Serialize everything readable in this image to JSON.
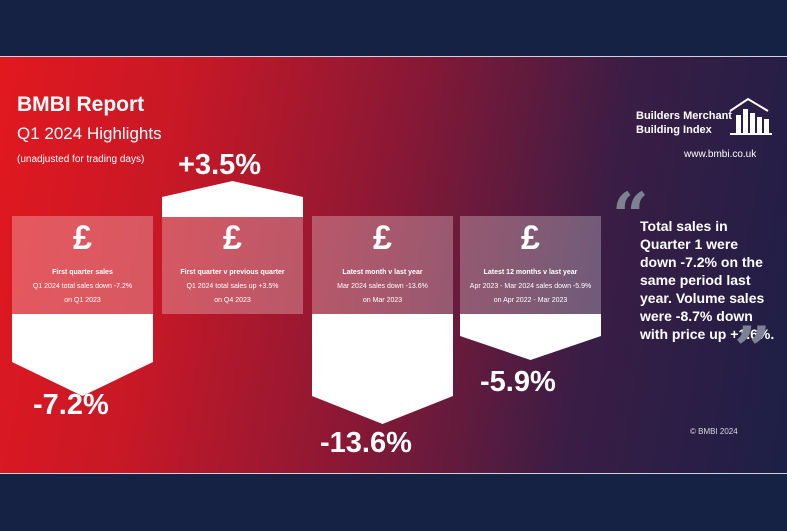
{
  "report": {
    "title": "BMBI Report",
    "subtitle": "Q1 2024 Highlights",
    "note": "(unadjusted for trading days)"
  },
  "logo": {
    "line1": "Builders Merchant",
    "line2": "Building Index",
    "url": "www.bmbi.co.uk",
    "icon": "building-skyline-icon"
  },
  "cards": [
    {
      "symbol": "£",
      "line1": "First quarter sales",
      "line2": "Q1 2024 total sales down -7.2%",
      "line3": "on Q1 2023",
      "value": "-7.2%"
    },
    {
      "symbol": "£",
      "line1": "First quarter v previous quarter",
      "line2": "Q1 2024 total sales up +3.5%",
      "line3": "on Q4 2023",
      "value": "+3.5%"
    },
    {
      "symbol": "£",
      "line1": "Latest month v last year",
      "line2": "Mar 2024 sales down -13.6%",
      "line3": "on Mar 2023",
      "value": "-13.6%"
    },
    {
      "symbol": "£",
      "line1": "Latest 12 months v last year",
      "line2": "Apr 2023 - Mar 2024 sales down -5.9%",
      "line3": "on Apr 2022 - Mar 2023",
      "value": "-5.9%"
    }
  ],
  "quote": {
    "open": "“",
    "close": "”",
    "text": "Total sales in Quarter 1 were down -7.2% on the same period last year. Volume sales were -8.7% down with price up +1.6%."
  },
  "copyright": "© BMBI 2024",
  "colors": {
    "navy": "#162243",
    "red": "#e2181f",
    "card_overlay": "rgba(255,255,255,0.28)",
    "white": "#ffffff"
  }
}
